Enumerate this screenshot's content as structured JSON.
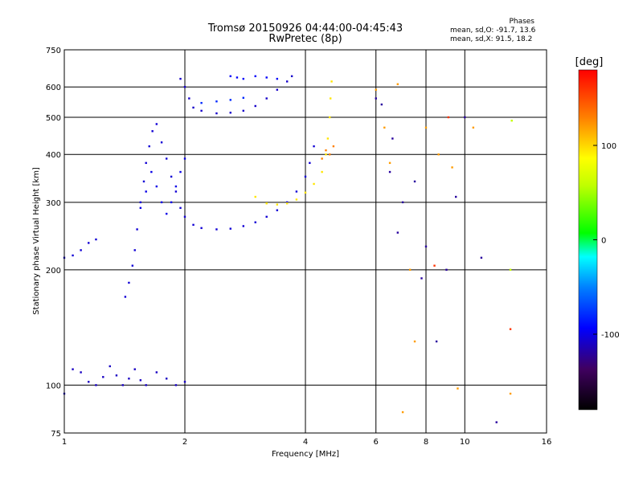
{
  "header": {
    "title": "Tromsø 20150926 04:44:00-04:45:43",
    "subtitle": "RwPretec (8p)",
    "stats_title": "Phases",
    "stats_o": "mean, sd,O: -91.7, 13.6",
    "stats_x": "mean, sd,X:  91.5, 18.2"
  },
  "chart_data": {
    "type": "scatter",
    "title": "Tromsø 20150926 04:44:00-04:45:43",
    "subtitle": "RwPretec (8p)",
    "xlabel": "Frequency [MHz]",
    "ylabel": "Stationary phase Virtual Height [km]",
    "xscale": "log",
    "yscale": "log",
    "xlim": [
      1,
      16
    ],
    "ylim": [
      75,
      750
    ],
    "xticks": [
      1,
      2,
      4,
      6,
      8,
      10,
      16
    ],
    "yticks": [
      75,
      100,
      200,
      300,
      400,
      500,
      600,
      750
    ],
    "grid": true,
    "colorbar": {
      "label": "[deg]",
      "range": [
        -180,
        180
      ],
      "ticks": [
        100,
        0,
        -100
      ]
    },
    "series": [
      {
        "phase": -105,
        "points": [
          [
            1.0,
            215
          ],
          [
            1.05,
            218
          ],
          [
            1.1,
            225
          ],
          [
            1.15,
            235
          ],
          [
            1.2,
            240
          ]
        ]
      },
      {
        "phase": -110,
        "points": [
          [
            1.0,
            95
          ],
          [
            1.05,
            110
          ],
          [
            1.1,
            108
          ],
          [
            1.15,
            102
          ],
          [
            1.2,
            100
          ],
          [
            1.25,
            105
          ],
          [
            1.3,
            112
          ],
          [
            1.35,
            106
          ],
          [
            1.4,
            100
          ],
          [
            1.45,
            104
          ],
          [
            1.5,
            110
          ],
          [
            1.55,
            103
          ],
          [
            1.6,
            100
          ],
          [
            1.7,
            108
          ],
          [
            1.8,
            104
          ],
          [
            1.9,
            100
          ],
          [
            2.0,
            102
          ]
        ]
      },
      {
        "phase": -105,
        "points": [
          [
            1.42,
            170
          ],
          [
            1.45,
            185
          ],
          [
            1.48,
            205
          ],
          [
            1.5,
            225
          ],
          [
            1.52,
            255
          ],
          [
            1.55,
            300
          ],
          [
            1.58,
            340
          ],
          [
            1.6,
            380
          ],
          [
            1.63,
            420
          ],
          [
            1.66,
            460
          ],
          [
            1.7,
            480
          ],
          [
            1.75,
            430
          ],
          [
            1.8,
            390
          ],
          [
            1.85,
            350
          ],
          [
            1.9,
            320
          ],
          [
            1.95,
            290
          ],
          [
            2.0,
            275
          ],
          [
            2.1,
            262
          ],
          [
            2.2,
            257
          ],
          [
            2.4,
            255
          ],
          [
            2.6,
            256
          ],
          [
            2.8,
            260
          ],
          [
            3.0,
            266
          ],
          [
            3.2,
            275
          ],
          [
            3.4,
            286
          ],
          [
            3.6,
            300
          ],
          [
            3.8,
            320
          ],
          [
            4.0,
            350
          ],
          [
            4.1,
            380
          ],
          [
            4.2,
            420
          ]
        ]
      },
      {
        "phase": -100,
        "points": [
          [
            1.55,
            290
          ],
          [
            1.6,
            320
          ],
          [
            1.65,
            360
          ],
          [
            1.7,
            330
          ],
          [
            1.75,
            300
          ],
          [
            1.8,
            280
          ],
          [
            1.85,
            300
          ],
          [
            1.9,
            330
          ],
          [
            1.95,
            360
          ],
          [
            2.0,
            390
          ]
        ]
      },
      {
        "phase": -108,
        "points": [
          [
            1.95,
            630
          ],
          [
            2.0,
            600
          ],
          [
            2.05,
            560
          ],
          [
            2.1,
            530
          ],
          [
            2.2,
            520
          ],
          [
            2.4,
            512
          ],
          [
            2.6,
            514
          ],
          [
            2.8,
            520
          ],
          [
            3.0,
            535
          ],
          [
            3.2,
            560
          ],
          [
            3.4,
            590
          ],
          [
            3.6,
            620
          ],
          [
            3.7,
            640
          ]
        ]
      },
      {
        "phase": -95,
        "points": [
          [
            2.6,
            640
          ],
          [
            2.7,
            635
          ],
          [
            2.8,
            630
          ],
          [
            3.0,
            640
          ],
          [
            3.2,
            635
          ],
          [
            3.4,
            630
          ]
        ]
      },
      {
        "phase": -80,
        "points": [
          [
            2.2,
            545
          ],
          [
            2.4,
            550
          ],
          [
            2.6,
            555
          ],
          [
            2.8,
            562
          ]
        ]
      },
      {
        "phase": 95,
        "points": [
          [
            3.0,
            310
          ],
          [
            3.2,
            298
          ],
          [
            3.4,
            296
          ],
          [
            3.6,
            298
          ],
          [
            3.8,
            305
          ],
          [
            4.0,
            318
          ],
          [
            4.2,
            335
          ],
          [
            4.4,
            360
          ],
          [
            4.5,
            400
          ],
          [
            4.55,
            440
          ],
          [
            4.6,
            500
          ],
          [
            4.62,
            560
          ],
          [
            4.65,
            620
          ]
        ]
      },
      {
        "phase": 130,
        "points": [
          [
            4.4,
            390
          ],
          [
            4.5,
            410
          ],
          [
            4.6,
            400
          ],
          [
            4.7,
            420
          ]
        ]
      },
      {
        "phase": -120,
        "points": [
          [
            6.0,
            560
          ],
          [
            6.2,
            540
          ],
          [
            6.5,
            360
          ],
          [
            6.6,
            440
          ],
          [
            6.8,
            250
          ],
          [
            7.0,
            300
          ],
          [
            7.5,
            340
          ],
          [
            7.8,
            190
          ],
          [
            8.0,
            230
          ],
          [
            8.5,
            130
          ],
          [
            9.0,
            200
          ],
          [
            9.5,
            310
          ],
          [
            10.0,
            500
          ],
          [
            11.0,
            215
          ],
          [
            12.0,
            80
          ]
        ]
      },
      {
        "phase": 120,
        "points": [
          [
            6.0,
            590
          ],
          [
            6.3,
            470
          ],
          [
            6.5,
            380
          ],
          [
            6.8,
            610
          ],
          [
            7.0,
            85
          ],
          [
            7.3,
            200
          ],
          [
            7.5,
            130
          ],
          [
            8.0,
            470
          ],
          [
            8.6,
            400
          ],
          [
            9.3,
            370
          ],
          [
            9.6,
            98
          ],
          [
            10.5,
            470
          ],
          [
            13.0,
            95
          ]
        ]
      },
      {
        "phase": 160,
        "points": [
          [
            8.4,
            205
          ],
          [
            9.1,
            500
          ],
          [
            13.0,
            140
          ]
        ]
      },
      {
        "phase": 60,
        "points": [
          [
            13.1,
            490
          ],
          [
            13.0,
            200
          ]
        ]
      }
    ]
  }
}
